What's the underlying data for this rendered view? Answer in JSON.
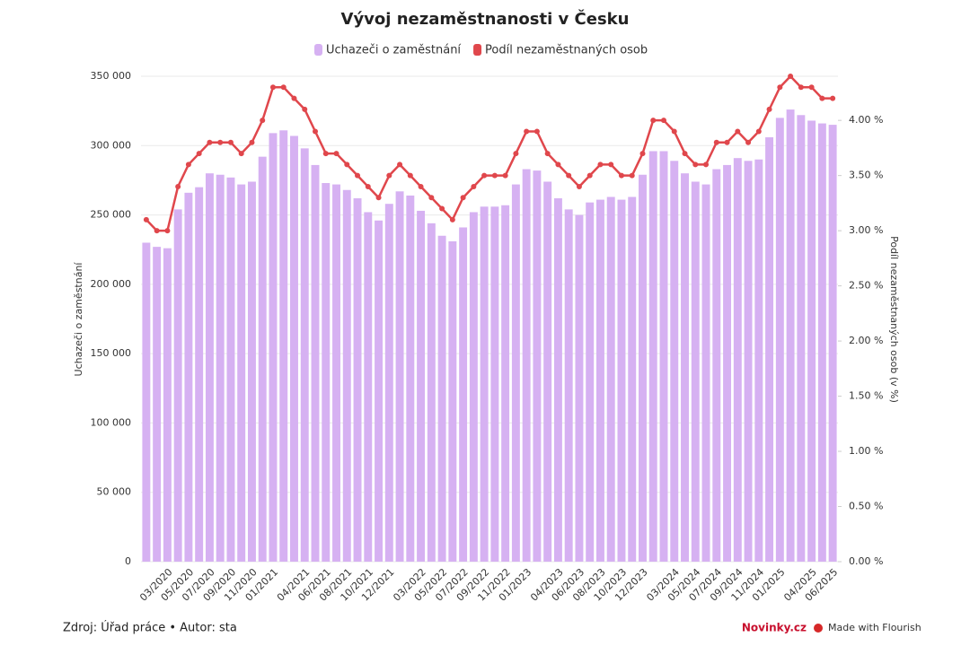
{
  "chart_data": {
    "type": "bar_line",
    "title": "Vývoj nezaměstnanosti v Česku",
    "y_label": "Uchazeči o zaměstnání",
    "y2_label": "Podíl nezaměstnaných osob (v %)",
    "source": "Zdroj: Úřad práce • Autor: sta",
    "logo": "Novinky.cz",
    "credit": "Made with Flourish",
    "categories": [
      null,
      null,
      "03/2020",
      null,
      "05/2020",
      null,
      "07/2020",
      null,
      "09/2020",
      null,
      "11/2020",
      null,
      "01/2021",
      null,
      null,
      "04/2021",
      null,
      "06/2021",
      null,
      "08/2021",
      null,
      "10/2021",
      null,
      "12/2021",
      null,
      null,
      "03/2022",
      null,
      "05/2022",
      null,
      "07/2022",
      null,
      "09/2022",
      null,
      "11/2022",
      null,
      "01/2023",
      null,
      null,
      "04/2023",
      null,
      "06/2023",
      null,
      "08/2023",
      null,
      "10/2023",
      null,
      "12/2023",
      null,
      null,
      "03/2024",
      null,
      "05/2024",
      null,
      "07/2024",
      null,
      "09/2024",
      null,
      "11/2024",
      null,
      "01/2025",
      null,
      null,
      "04/2025",
      null,
      "06/2025"
    ],
    "series": [
      {
        "name": "Uchazeči o zaměstnání",
        "kind": "bar",
        "color": "#d6b1f2",
        "axis": "y",
        "values": [
          230000,
          227000,
          226000,
          254000,
          266000,
          270000,
          280000,
          279000,
          277000,
          272000,
          274000,
          292000,
          309000,
          311000,
          307000,
          298000,
          286000,
          273000,
          272000,
          268000,
          262000,
          252000,
          246000,
          258000,
          267000,
          264000,
          253000,
          244000,
          235000,
          231000,
          241000,
          252000,
          256000,
          256000,
          257000,
          272000,
          283000,
          282000,
          274000,
          262000,
          254000,
          250000,
          259000,
          261000,
          263000,
          261000,
          263000,
          279000,
          296000,
          296000,
          289000,
          280000,
          274000,
          272000,
          283000,
          286000,
          291000,
          289000,
          290000,
          306000,
          320000,
          326000,
          322000,
          318000,
          316000,
          315000
        ]
      },
      {
        "name": "Podíl nezaměstnaných osob",
        "kind": "line",
        "color": "#e0474c",
        "axis": "y2",
        "values": [
          3.1,
          3.0,
          3.0,
          3.4,
          3.6,
          3.7,
          3.8,
          3.8,
          3.8,
          3.7,
          3.8,
          4.0,
          4.3,
          4.3,
          4.2,
          4.1,
          3.9,
          3.7,
          3.7,
          3.6,
          3.5,
          3.4,
          3.3,
          3.5,
          3.6,
          3.5,
          3.4,
          3.3,
          3.2,
          3.1,
          3.3,
          3.4,
          3.5,
          3.5,
          3.5,
          3.7,
          3.9,
          3.9,
          3.7,
          3.6,
          3.5,
          3.4,
          3.5,
          3.6,
          3.6,
          3.5,
          3.5,
          3.7,
          4.0,
          4.0,
          3.9,
          3.7,
          3.6,
          3.6,
          3.8,
          3.8,
          3.9,
          3.8,
          3.9,
          4.1,
          4.3,
          4.4,
          4.3,
          4.3,
          4.2,
          4.2
        ]
      }
    ],
    "ylim": [
      0,
      350000
    ],
    "yticks": [
      0,
      {
        "value": 50000,
        "label": "50 000"
      },
      {
        "value": 100000,
        "label": "100 000"
      },
      {
        "value": 150000,
        "label": "150 000"
      },
      {
        "value": 200000,
        "label": "200 000"
      },
      {
        "value": 250000,
        "label": "250 000"
      },
      {
        "value": 300000,
        "label": "300 000"
      },
      {
        "value": 350000,
        "label": "350 000"
      }
    ],
    "y2lim": [
      0,
      4.4
    ],
    "y2ticks": [
      {
        "value": 0,
        "label": "0.00 %"
      },
      {
        "value": 0.5,
        "label": "0.50 %"
      },
      {
        "value": 1,
        "label": "1.00 %"
      },
      {
        "value": 1.5,
        "label": "1.50 %"
      },
      {
        "value": 2,
        "label": "2.00 %"
      },
      {
        "value": 2.5,
        "label": "2.50 %"
      },
      {
        "value": 3,
        "label": "3.00 %"
      },
      {
        "value": 3.5,
        "label": "3.50 %"
      },
      {
        "value": 4,
        "label": "4.00 %"
      }
    ],
    "grid": true
  }
}
